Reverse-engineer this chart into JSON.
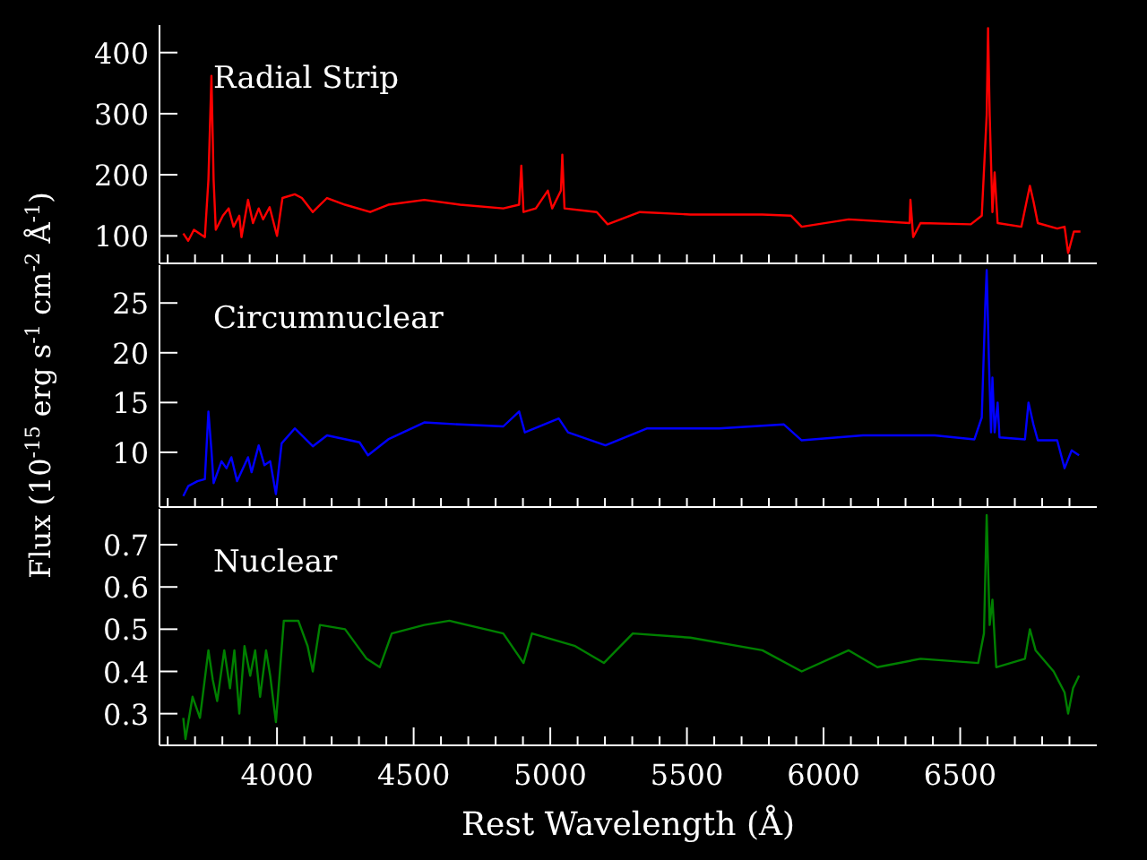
{
  "chart_data": [
    {
      "type": "line",
      "xlim": [
        3570,
        7000
      ],
      "xticks": [
        {
          "value": 3600,
          "label": null
        },
        {
          "value": 3700,
          "label": null
        },
        {
          "value": 3800,
          "label": null
        },
        {
          "value": 3900,
          "label": null
        },
        {
          "value": 4000,
          "label": null
        },
        {
          "value": 4100,
          "label": null
        },
        {
          "value": 4200,
          "label": null
        },
        {
          "value": 4300,
          "label": null
        },
        {
          "value": 4400,
          "label": null
        },
        {
          "value": 4500,
          "label": null
        },
        {
          "value": 4600,
          "label": null
        },
        {
          "value": 4700,
          "label": null
        },
        {
          "value": 4800,
          "label": null
        },
        {
          "value": 4900,
          "label": null
        },
        {
          "value": 5000,
          "label": null
        },
        {
          "value": 5100,
          "label": null
        },
        {
          "value": 5200,
          "label": null
        },
        {
          "value": 5300,
          "label": null
        },
        {
          "value": 5400,
          "label": null
        },
        {
          "value": 5500,
          "label": null
        },
        {
          "value": 5600,
          "label": null
        },
        {
          "value": 5700,
          "label": null
        },
        {
          "value": 5800,
          "label": null
        },
        {
          "value": 5900,
          "label": null
        },
        {
          "value": 6000,
          "label": null
        },
        {
          "value": 6100,
          "label": null
        },
        {
          "value": 6200,
          "label": null
        },
        {
          "value": 6300,
          "label": null
        },
        {
          "value": 6400,
          "label": null
        },
        {
          "value": 6500,
          "label": null
        },
        {
          "value": 6600,
          "label": null
        },
        {
          "value": 6700,
          "label": null
        },
        {
          "value": 6800,
          "label": null
        },
        {
          "value": 6900,
          "label": null
        }
      ],
      "ylim": [
        55,
        445
      ],
      "yticks": [
        100,
        200,
        300,
        400
      ],
      "tick_labels": "y",
      "series": [
        {
          "name": "Radial Strip",
          "color": "#ff0000",
          "x": [
            3657,
            3675,
            3696,
            3736,
            3749,
            3760,
            3768,
            3776,
            3802,
            3823,
            3841,
            3862,
            3870,
            3894,
            3912,
            3933,
            3949,
            3973,
            4000,
            4020,
            4065,
            4091,
            4131,
            4183,
            4249,
            4341,
            4407,
            4539,
            4670,
            4828,
            4886,
            4894,
            4902,
            4947,
            4991,
            5007,
            5039,
            5044,
            5052,
            5170,
            5210,
            5328,
            5512,
            5776,
            5881,
            5920,
            6092,
            6315,
            6318,
            6328,
            6355,
            6539,
            6579,
            6597,
            6602,
            6608,
            6618,
            6626,
            6637,
            6724,
            6755,
            6768,
            6784,
            6855,
            6882,
            6895,
            6916,
            6940
          ],
          "values": [
            104,
            92,
            110,
            98,
            192,
            362,
            192,
            110,
            133,
            145,
            115,
            133,
            98,
            159,
            121,
            145,
            127,
            147,
            100,
            162,
            168,
            162,
            139,
            162,
            151,
            139,
            151,
            159,
            151,
            145,
            151,
            215,
            139,
            145,
            174,
            145,
            174,
            233,
            145,
            139,
            119,
            139,
            135,
            135,
            133,
            115,
            127,
            121,
            159,
            98,
            121,
            119,
            133,
            298,
            440,
            298,
            139,
            204,
            121,
            115,
            182,
            157,
            121,
            112,
            115,
            72,
            107,
            107
          ]
        }
      ]
    },
    {
      "type": "line",
      "ylabel": "Flux (10$^{-15}$ erg s$^{-1}$ cm$^{-2}$ Å$^{-1}$)",
      "xlim": [
        3570,
        7000
      ],
      "xticks": [
        {
          "value": 3600,
          "label": null
        },
        {
          "value": 3700,
          "label": null
        },
        {
          "value": 3800,
          "label": null
        },
        {
          "value": 3900,
          "label": null
        },
        {
          "value": 4000,
          "label": null
        },
        {
          "value": 4100,
          "label": null
        },
        {
          "value": 4200,
          "label": null
        },
        {
          "value": 4300,
          "label": null
        },
        {
          "value": 4400,
          "label": null
        },
        {
          "value": 4500,
          "label": null
        },
        {
          "value": 4600,
          "label": null
        },
        {
          "value": 4700,
          "label": null
        },
        {
          "value": 4800,
          "label": null
        },
        {
          "value": 4900,
          "label": null
        },
        {
          "value": 5000,
          "label": null
        },
        {
          "value": 5100,
          "label": null
        },
        {
          "value": 5200,
          "label": null
        },
        {
          "value": 5300,
          "label": null
        },
        {
          "value": 5400,
          "label": null
        },
        {
          "value": 5500,
          "label": null
        },
        {
          "value": 5600,
          "label": null
        },
        {
          "value": 5700,
          "label": null
        },
        {
          "value": 5800,
          "label": null
        },
        {
          "value": 5900,
          "label": null
        },
        {
          "value": 6000,
          "label": null
        },
        {
          "value": 6100,
          "label": null
        },
        {
          "value": 6200,
          "label": null
        },
        {
          "value": 6300,
          "label": null
        },
        {
          "value": 6400,
          "label": null
        },
        {
          "value": 6500,
          "label": null
        },
        {
          "value": 6600,
          "label": null
        },
        {
          "value": 6700,
          "label": null
        },
        {
          "value": 6800,
          "label": null
        },
        {
          "value": 6900,
          "label": null
        }
      ],
      "ylim": [
        4.5,
        28.8
      ],
      "yticks": [
        10,
        15,
        20,
        25
      ],
      "tick_labels": "y",
      "series": [
        {
          "name": "Circumnuclear",
          "color": "#0000ff",
          "x": [
            3657,
            3675,
            3709,
            3736,
            3749,
            3760,
            3768,
            3797,
            3815,
            3833,
            3854,
            3894,
            3907,
            3933,
            3954,
            3975,
            3996,
            4017,
            4065,
            4131,
            4183,
            4302,
            4333,
            4407,
            4539,
            4670,
            4828,
            4886,
            4907,
            5031,
            5065,
            5202,
            5355,
            5618,
            5855,
            5920,
            6144,
            6407,
            6552,
            6579,
            6592,
            6597,
            6605,
            6613,
            6618,
            6626,
            6637,
            6644,
            6737,
            6750,
            6768,
            6784,
            6855,
            6882,
            6908,
            6935
          ],
          "values": [
            5.6,
            6.6,
            7.1,
            7.3,
            14.1,
            10.2,
            6.9,
            9.1,
            8.4,
            9.5,
            7.1,
            9.5,
            8.0,
            10.7,
            8.7,
            9.1,
            5.8,
            10.9,
            12.4,
            10.6,
            11.7,
            11.0,
            9.7,
            11.3,
            13.0,
            12.8,
            12.6,
            14.1,
            12.0,
            13.4,
            12.0,
            10.7,
            12.4,
            12.4,
            12.8,
            11.2,
            11.7,
            11.7,
            11.3,
            13.5,
            24.9,
            28.3,
            19.4,
            12.0,
            17.5,
            12.0,
            15.0,
            11.5,
            11.3,
            15.0,
            12.8,
            11.2,
            11.2,
            8.4,
            10.2,
            9.7
          ]
        }
      ]
    },
    {
      "type": "line",
      "xlabel": "Rest Wavelength (Å)",
      "xlim": [
        3570,
        7000
      ],
      "xticks": [
        {
          "value": 3600,
          "label": null
        },
        {
          "value": 3700,
          "label": null
        },
        {
          "value": 3800,
          "label": null
        },
        {
          "value": 3900,
          "label": null
        },
        4000,
        {
          "value": 4100,
          "label": null
        },
        {
          "value": 4200,
          "label": null
        },
        {
          "value": 4300,
          "label": null
        },
        {
          "value": 4400,
          "label": null
        },
        4500,
        {
          "value": 4600,
          "label": null
        },
        {
          "value": 4700,
          "label": null
        },
        {
          "value": 4800,
          "label": null
        },
        {
          "value": 4900,
          "label": null
        },
        5000,
        {
          "value": 5100,
          "label": null
        },
        {
          "value": 5200,
          "label": null
        },
        {
          "value": 5300,
          "label": null
        },
        {
          "value": 5400,
          "label": null
        },
        5500,
        {
          "value": 5600,
          "label": null
        },
        {
          "value": 5700,
          "label": null
        },
        {
          "value": 5800,
          "label": null
        },
        {
          "value": 5900,
          "label": null
        },
        6000,
        {
          "value": 6100,
          "label": null
        },
        {
          "value": 6200,
          "label": null
        },
        {
          "value": 6300,
          "label": null
        },
        {
          "value": 6400,
          "label": null
        },
        6500,
        {
          "value": 6600,
          "label": null
        },
        {
          "value": 6700,
          "label": null
        },
        {
          "value": 6800,
          "label": null
        },
        {
          "value": 6900,
          "label": null
        }
      ],
      "ylim": [
        0.225,
        0.785
      ],
      "yticks": [
        0.3,
        0.4,
        0.5,
        0.6,
        0.7
      ],
      "series": [
        {
          "name": "Nuclear",
          "color": "#008000",
          "x": [
            3657,
            3665,
            3691,
            3718,
            3749,
            3765,
            3781,
            3807,
            3828,
            3844,
            3862,
            3881,
            3902,
            3920,
            3938,
            3960,
            3975,
            3996,
            4025,
            4078,
            4112,
            4131,
            4157,
            4249,
            4328,
            4376,
            4420,
            4539,
            4631,
            4828,
            4902,
            4933,
            5091,
            5196,
            5302,
            5512,
            5776,
            5920,
            6092,
            6197,
            6355,
            6566,
            6587,
            6597,
            6608,
            6618,
            6632,
            6737,
            6755,
            6776,
            6842,
            6882,
            6895,
            6913,
            6935
          ],
          "values": [
            0.29,
            0.24,
            0.34,
            0.29,
            0.45,
            0.38,
            0.33,
            0.45,
            0.36,
            0.45,
            0.3,
            0.46,
            0.39,
            0.45,
            0.34,
            0.45,
            0.39,
            0.28,
            0.52,
            0.52,
            0.46,
            0.4,
            0.51,
            0.5,
            0.43,
            0.41,
            0.49,
            0.51,
            0.52,
            0.49,
            0.42,
            0.49,
            0.46,
            0.42,
            0.49,
            0.48,
            0.45,
            0.4,
            0.45,
            0.41,
            0.43,
            0.42,
            0.49,
            0.77,
            0.51,
            0.57,
            0.41,
            0.43,
            0.5,
            0.45,
            0.4,
            0.35,
            0.3,
            0.36,
            0.39
          ]
        }
      ]
    }
  ]
}
